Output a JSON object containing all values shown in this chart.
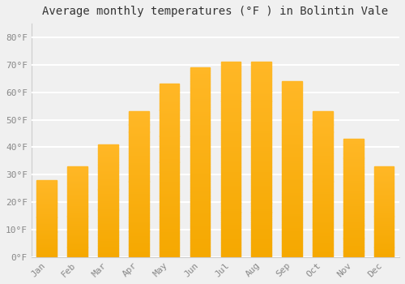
{
  "title": "Average monthly temperatures (°F ) in Bolintin Vale",
  "months": [
    "Jan",
    "Feb",
    "Mar",
    "Apr",
    "May",
    "Jun",
    "Jul",
    "Aug",
    "Sep",
    "Oct",
    "Nov",
    "Dec"
  ],
  "values": [
    28,
    33,
    41,
    53,
    63,
    69,
    71,
    71,
    64,
    53,
    43,
    33
  ],
  "bar_color_light": "#FFB726",
  "bar_color_dark": "#F5A800",
  "background_color": "#f0f0f0",
  "grid_color": "#ffffff",
  "yticks": [
    0,
    10,
    20,
    30,
    40,
    50,
    60,
    70,
    80
  ],
  "ylim": [
    0,
    85
  ],
  "title_fontsize": 10,
  "tick_fontsize": 8,
  "bar_width": 0.65
}
